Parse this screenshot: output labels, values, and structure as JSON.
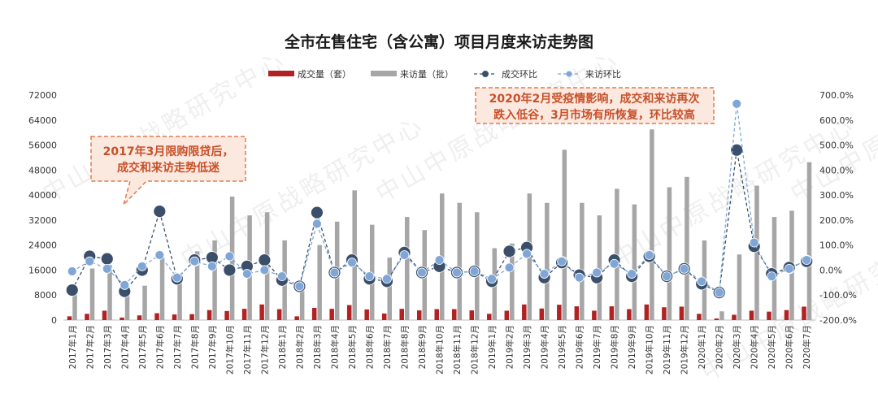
{
  "chart_data": {
    "type": "bar",
    "title": "全市在售住宅（含公寓）项目月度来访走势图",
    "categories": [
      "2017年1月",
      "2017年2月",
      "2017年3月",
      "2017年4月",
      "2017年5月",
      "2017年6月",
      "2017年7月",
      "2017年8月",
      "2017年9月",
      "2017年10月",
      "2017年11月",
      "2017年12月",
      "2018年1月",
      "2018年2月",
      "2018年3月",
      "2018年4月",
      "2018年5月",
      "2018年6月",
      "2018年7月",
      "2018年8月",
      "2018年9月",
      "2018年10月",
      "2018年11月",
      "2018年12月",
      "2019年1月",
      "2019年2月",
      "2019年3月",
      "2019年4月",
      "2019年5月",
      "2019年6月",
      "2019年7月",
      "2019年8月",
      "2019年9月",
      "2019年10月",
      "2019年11月",
      "2019年12月",
      "2020年1月",
      "2020年2月",
      "2020年3月",
      "2020年4月",
      "2020年5月",
      "2020年6月",
      "2020年7月"
    ],
    "yticks_left": [
      "0",
      "8000",
      "16000",
      "24000",
      "32000",
      "40000",
      "48000",
      "56000",
      "64000",
      "72000"
    ],
    "yticks_right": [
      "-200.0%",
      "-100.0%",
      "0.0%",
      "100.0%",
      "200.0%",
      "300.0%",
      "400.0%",
      "500.0%",
      "600.0%",
      "700.0%"
    ],
    "ylim_left": [
      0,
      72000
    ],
    "ylim_right": [
      -200,
      700
    ],
    "series": [
      {
        "name": "成交量（套）",
        "kind": "bar",
        "axis": "left",
        "color": "#b22222",
        "values": [
          1200,
          2000,
          3000,
          800,
          1500,
          2200,
          1800,
          1900,
          3200,
          2900,
          3600,
          5000,
          3500,
          1200,
          3900,
          3600,
          4800,
          3400,
          2100,
          3600,
          3100,
          3500,
          3500,
          3100,
          2000,
          3000,
          5000,
          3700,
          4900,
          4400,
          3000,
          4400,
          3500,
          5000,
          4100,
          4300,
          2000,
          500,
          1700,
          3000,
          2700,
          3200,
          4300
        ]
      },
      {
        "name": "来访量（批）",
        "kind": "bar",
        "axis": "left",
        "color": "#a6a6a6",
        "values": [
          10000,
          16500,
          16500,
          9500,
          11000,
          20000,
          12000,
          22000,
          25500,
          39500,
          33500,
          34500,
          25500,
          9500,
          24000,
          31500,
          41500,
          30500,
          20000,
          33000,
          28800,
          40500,
          37500,
          34500,
          23000,
          24500,
          40500,
          37500,
          54500,
          37500,
          33500,
          42000,
          37000,
          61000,
          42500,
          45800,
          25500,
          2800,
          21000,
          43000,
          33000,
          35000,
          50500
        ]
      },
      {
        "name": "成交环比",
        "kind": "line",
        "axis": "right",
        "color": "#3b4f6b",
        "values": [
          -80,
          55,
          45,
          -85,
          0,
          235,
          -35,
          40,
          50,
          0,
          15,
          40,
          -40,
          -65,
          230,
          -10,
          40,
          -35,
          -45,
          70,
          -10,
          15,
          -10,
          -5,
          -45,
          75,
          90,
          -30,
          30,
          -20,
          -30,
          40,
          -25,
          55,
          -25,
          5,
          -55,
          -90,
          480,
          95,
          -15,
          10,
          35
        ]
      },
      {
        "name": "来访环比",
        "kind": "line",
        "axis": "right",
        "color": "#7fa6d6",
        "values": [
          -5,
          35,
          5,
          -60,
          15,
          60,
          -30,
          35,
          15,
          55,
          -15,
          0,
          -25,
          -65,
          185,
          -10,
          30,
          -25,
          -35,
          60,
          -10,
          40,
          -10,
          -5,
          -35,
          10,
          65,
          -15,
          35,
          -30,
          -10,
          25,
          -15,
          60,
          -25,
          5,
          -45,
          -90,
          665,
          110,
          -25,
          5,
          40
        ]
      }
    ],
    "legend_position": "top",
    "grid": false
  },
  "annotations": [
    {
      "lines": [
        "2017年3月限购限贷后，",
        "成交和来访走势低迷"
      ]
    },
    {
      "lines": [
        "2020年2月受疫情影响，成交和来访再次",
        "跌入低谷，3月市场有所恢复，环比较高"
      ]
    }
  ],
  "watermark": "中山中原战略研究中心"
}
